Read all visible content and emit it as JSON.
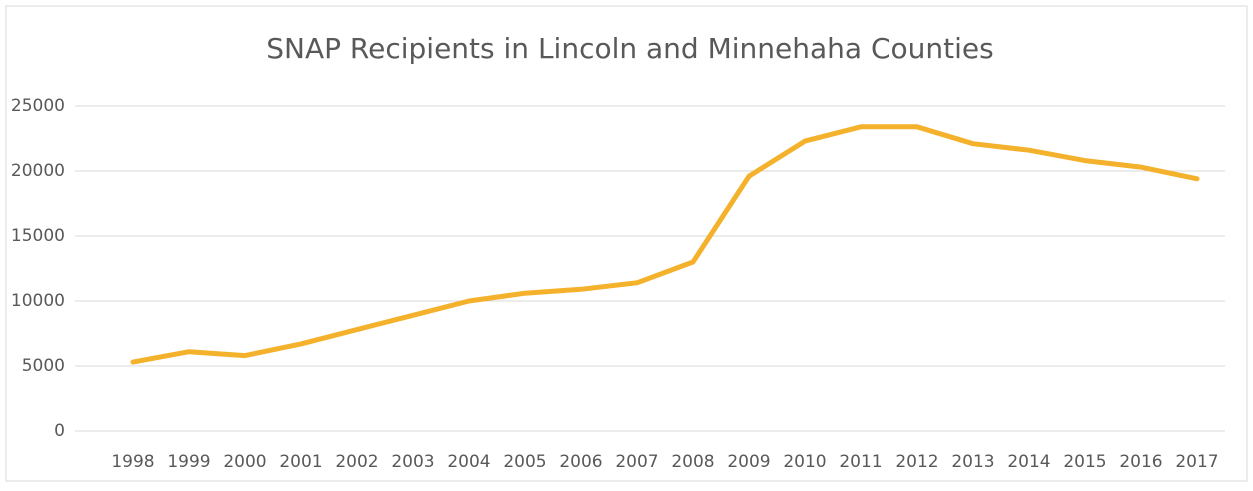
{
  "chart_data": {
    "type": "line",
    "title": "SNAP Recipients in Lincoln and Minnehaha Counties",
    "categories": [
      "1998",
      "1999",
      "2000",
      "2001",
      "2002",
      "2003",
      "2004",
      "2005",
      "2006",
      "2007",
      "2008",
      "2009",
      "2010",
      "2011",
      "2012",
      "2013",
      "2014",
      "2015",
      "2016",
      "2017"
    ],
    "values": [
      5300,
      6100,
      5800,
      6700,
      7800,
      8900,
      10000,
      10600,
      10900,
      11400,
      13000,
      19600,
      22300,
      23400,
      23400,
      22100,
      21600,
      20800,
      20300,
      19400
    ],
    "color": "#f4b12b",
    "ylim": [
      0,
      25000
    ],
    "yticks": [
      0,
      5000,
      10000,
      15000,
      20000,
      25000
    ],
    "grid": true
  }
}
